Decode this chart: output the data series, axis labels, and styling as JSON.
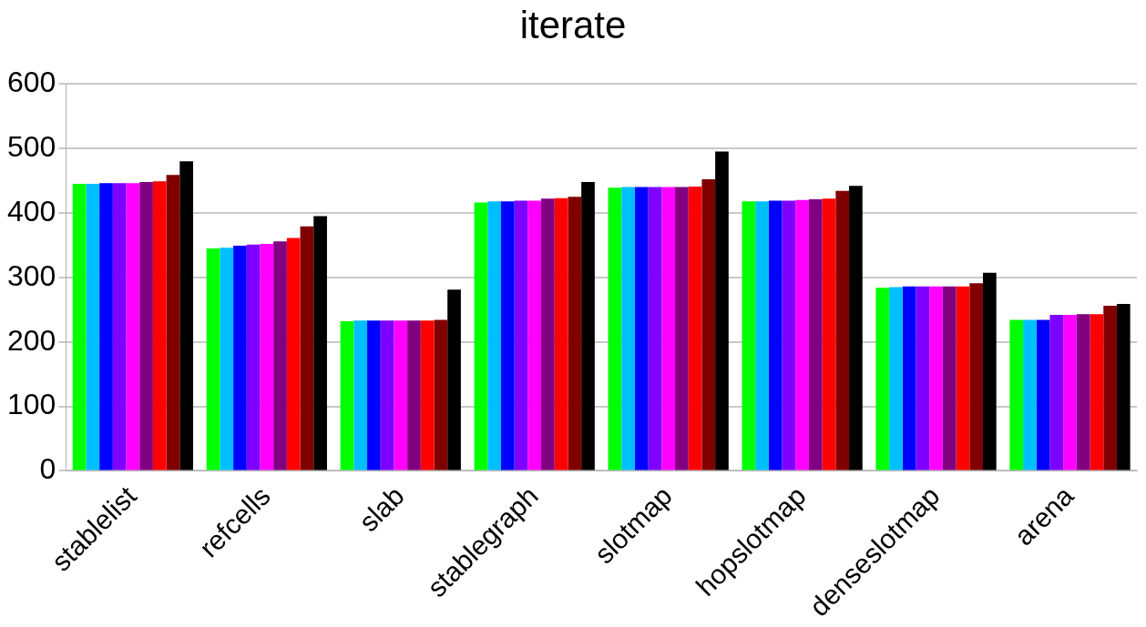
{
  "chart_data": {
    "type": "bar",
    "title": "iterate",
    "categories": [
      "stablelist",
      "refcells",
      "slab",
      "stablegraph",
      "slotmap",
      "hopslotmap",
      "denseslotmap",
      "arena"
    ],
    "series": [
      {
        "color": "#00ff00",
        "values": [
          445,
          345,
          232,
          416,
          439,
          418,
          284,
          234
        ]
      },
      {
        "color": "#00bfff",
        "values": [
          445,
          346,
          233,
          418,
          440,
          418,
          285,
          234
        ]
      },
      {
        "color": "#0000ff",
        "values": [
          446,
          349,
          233,
          418,
          440,
          419,
          286,
          234
        ]
      },
      {
        "color": "#8000ff",
        "values": [
          446,
          351,
          233,
          419,
          440,
          419,
          286,
          242
        ]
      },
      {
        "color": "#ff00ff",
        "values": [
          446,
          352,
          233,
          419,
          440,
          420,
          286,
          242
        ]
      },
      {
        "color": "#800080",
        "values": [
          448,
          356,
          233,
          422,
          440,
          421,
          286,
          243
        ]
      },
      {
        "color": "#ff0000",
        "values": [
          449,
          361,
          233,
          423,
          441,
          422,
          286,
          243
        ]
      },
      {
        "color": "#800000",
        "values": [
          459,
          379,
          234,
          425,
          452,
          434,
          291,
          256
        ]
      },
      {
        "color": "#000000",
        "values": [
          480,
          395,
          281,
          448,
          495,
          442,
          307,
          259
        ]
      }
    ],
    "ylim": [
      0,
      600
    ],
    "yticks": [
      0,
      100,
      200,
      300,
      400,
      500,
      600
    ],
    "grid": "y",
    "legend": false
  }
}
